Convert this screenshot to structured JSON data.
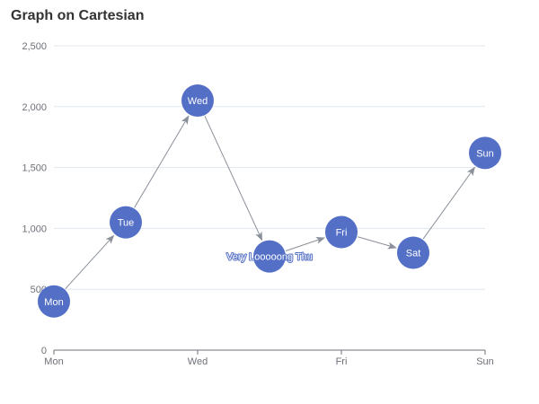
{
  "title": "Graph on Cartesian",
  "colors": {
    "node": "#5470c6",
    "edge": "#8a8f99",
    "grid": "#e0e6f1",
    "axis": "#6e7079",
    "title": "#333333",
    "label": "#ffffff"
  },
  "chart_data": {
    "type": "graph",
    "title": "Graph on Cartesian",
    "x_categories": [
      "Mon",
      "Tue",
      "Wed",
      "Thu",
      "Fri",
      "Sat",
      "Sun"
    ],
    "x_tick_labels": [
      "Mon",
      "Wed",
      "Fri",
      "Sun"
    ],
    "ylim": [
      0,
      2500
    ],
    "y_ticks": [
      0,
      500,
      1000,
      1500,
      2000,
      2500
    ],
    "y_tick_labels": [
      "0",
      "500",
      "1,000",
      "1,500",
      "2,000",
      "2,500"
    ],
    "grid": true,
    "nodes": [
      {
        "label": "Mon",
        "x": "Mon",
        "y": 400
      },
      {
        "label": "Tue",
        "x": "Tue",
        "y": 1050
      },
      {
        "label": "Wed",
        "x": "Wed",
        "y": 2050
      },
      {
        "label": "Very Looooong Thu",
        "x": "Thu",
        "y": 770
      },
      {
        "label": "Fri",
        "x": "Fri",
        "y": 970
      },
      {
        "label": "Sat",
        "x": "Sat",
        "y": 800
      },
      {
        "label": "Sun",
        "x": "Sun",
        "y": 1620
      }
    ],
    "edges": [
      [
        0,
        1
      ],
      [
        1,
        2
      ],
      [
        2,
        3
      ],
      [
        3,
        4
      ],
      [
        4,
        5
      ],
      [
        5,
        6
      ]
    ]
  }
}
